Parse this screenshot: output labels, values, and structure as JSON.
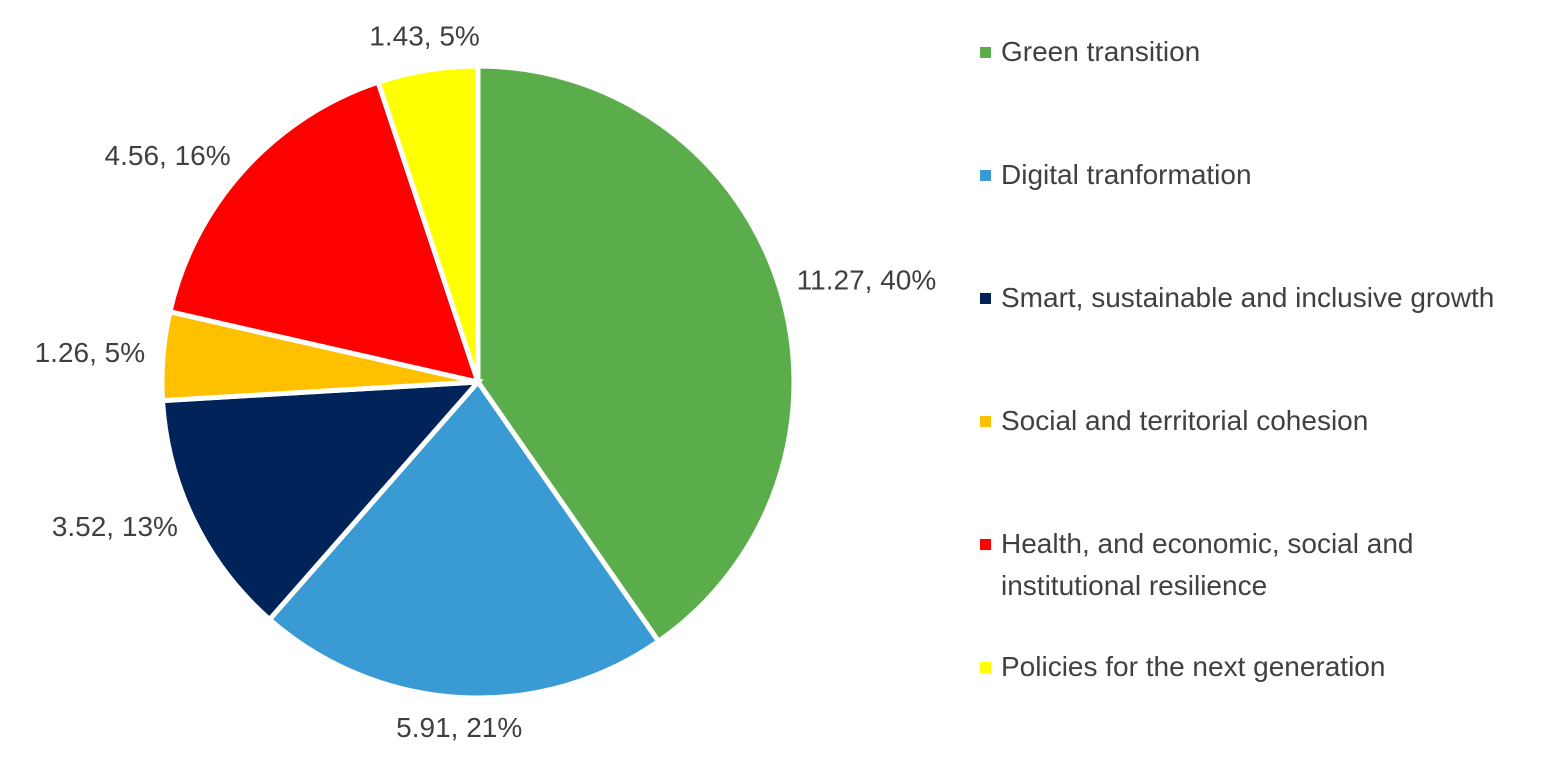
{
  "chart_data": {
    "type": "pie",
    "categories": [
      "Green transition",
      "Digital tranformation",
      "Smart, sustainable and inclusive growth",
      "Social and territorial cohesion",
      "Health, and economic, social and institutional resilience",
      "Policies for the next generation"
    ],
    "values": [
      11.27,
      5.91,
      3.52,
      1.26,
      4.56,
      1.43
    ],
    "value_labels": [
      "11.27, 40%",
      "5.91, 21%",
      "3.52, 13%",
      "1.26, 5%",
      "4.56, 16%",
      "1.43, 5%"
    ],
    "colors": [
      "#5aad4a",
      "#3a9ad4",
      "#00245a",
      "#ffc000",
      "#ff0000",
      "#ffff00"
    ],
    "legend": "right"
  }
}
